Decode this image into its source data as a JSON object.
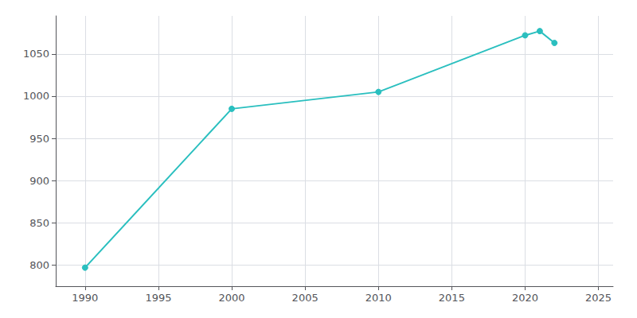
{
  "chart_data": {
    "type": "line",
    "x": [
      1990,
      2000,
      2010,
      2020,
      2021,
      2022
    ],
    "values": [
      797,
      985,
      1005,
      1072,
      1077,
      1063
    ],
    "color": "#2abfbf",
    "marker": "circle",
    "xlim": [
      1988,
      2026
    ],
    "xticks": [
      1990,
      1995,
      2000,
      2005,
      2010,
      2015,
      2020,
      2025
    ],
    "ylim": [
      775,
      1095
    ],
    "yticks": [
      800,
      850,
      900,
      950,
      1000,
      1050
    ],
    "grid": true
  }
}
